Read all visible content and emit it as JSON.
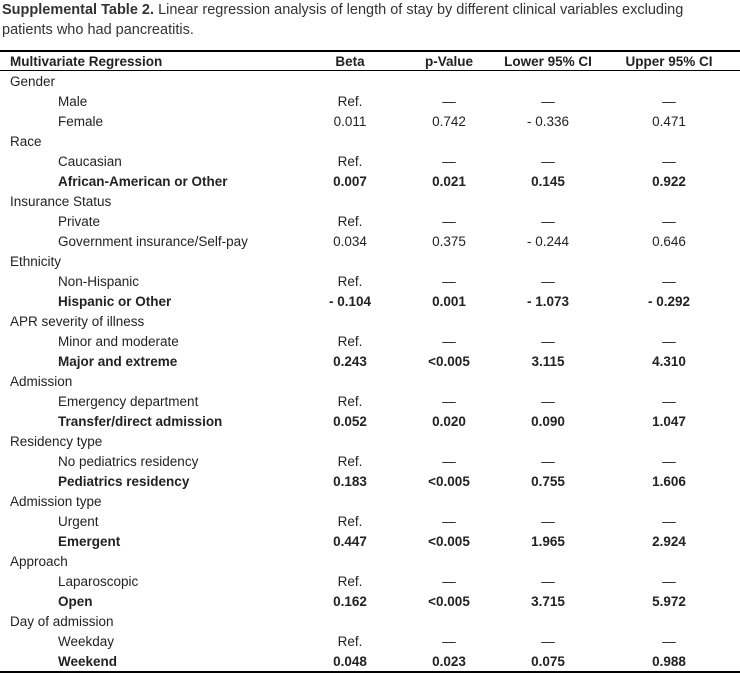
{
  "caption": {
    "label": "Supplemental Table 2.",
    "text": "Linear regression analysis of length of stay by different clinical variables excluding patients who had pancreatitis."
  },
  "table": {
    "columns": [
      "Multivariate Regression",
      "Beta",
      "p-Value",
      "Lower 95% CI",
      "Upper 95% CI"
    ],
    "groups": [
      {
        "label": "Gender",
        "rows": [
          {
            "label": "Male",
            "bold": false,
            "cells": [
              "Ref.",
              "—",
              "—",
              "—"
            ]
          },
          {
            "label": "Female",
            "bold": false,
            "cells": [
              "0.011",
              "0.742",
              "- 0.336",
              "0.471"
            ]
          }
        ]
      },
      {
        "label": "Race",
        "rows": [
          {
            "label": "Caucasian",
            "bold": false,
            "cells": [
              "Ref.",
              "—",
              "—",
              "—"
            ]
          },
          {
            "label": "African-American or Other",
            "bold": true,
            "cells": [
              "0.007",
              "0.021",
              "0.145",
              "0.922"
            ]
          }
        ]
      },
      {
        "label": "Insurance Status",
        "rows": [
          {
            "label": "Private",
            "bold": false,
            "cells": [
              "Ref.",
              "—",
              "—",
              "—"
            ]
          },
          {
            "label": "Government insurance/Self-pay",
            "bold": false,
            "cells": [
              "0.034",
              "0.375",
              "- 0.244",
              "0.646"
            ]
          }
        ]
      },
      {
        "label": "Ethnicity",
        "rows": [
          {
            "label": "Non-Hispanic",
            "bold": false,
            "cells": [
              "Ref.",
              "—",
              "—",
              "—"
            ]
          },
          {
            "label": "Hispanic or Other",
            "bold": true,
            "cells": [
              "- 0.104",
              "0.001",
              "- 1.073",
              "- 0.292"
            ]
          }
        ]
      },
      {
        "label": "APR severity of illness",
        "rows": [
          {
            "label": "Minor and moderate",
            "bold": false,
            "cells": [
              "Ref.",
              "—",
              "—",
              "—"
            ]
          },
          {
            "label": "Major and extreme",
            "bold": true,
            "cells": [
              "0.243",
              "<0.005",
              "3.115",
              "4.310"
            ]
          }
        ]
      },
      {
        "label": "Admission",
        "rows": [
          {
            "label": "Emergency department",
            "bold": false,
            "cells": [
              "Ref.",
              "—",
              "—",
              "—"
            ]
          },
          {
            "label": "Transfer/direct admission",
            "bold": true,
            "cells": [
              "0.052",
              "0.020",
              "0.090",
              "1.047"
            ]
          }
        ]
      },
      {
        "label": "Residency type",
        "rows": [
          {
            "label": "No pediatrics residency",
            "bold": false,
            "cells": [
              "Ref.",
              "—",
              "—",
              "—"
            ]
          },
          {
            "label": "Pediatrics residency",
            "bold": true,
            "cells": [
              "0.183",
              "<0.005",
              "0.755",
              "1.606"
            ]
          }
        ]
      },
      {
        "label": "Admission type",
        "rows": [
          {
            "label": "Urgent",
            "bold": false,
            "cells": [
              "Ref.",
              "—",
              "—",
              "—"
            ]
          },
          {
            "label": "Emergent",
            "bold": true,
            "cells": [
              "0.447",
              "<0.005",
              "1.965",
              "2.924"
            ]
          }
        ]
      },
      {
        "label": "Approach",
        "rows": [
          {
            "label": "Laparoscopic",
            "bold": false,
            "cells": [
              "Ref.",
              "—",
              "—",
              "—"
            ]
          },
          {
            "label": "Open",
            "bold": true,
            "cells": [
              "0.162",
              "<0.005",
              "3.715",
              "5.972"
            ]
          }
        ]
      },
      {
        "label": "Day of admission",
        "rows": [
          {
            "label": "Weekday",
            "bold": false,
            "cells": [
              "Ref.",
              "—",
              "—",
              "—"
            ]
          },
          {
            "label": "Weekend",
            "bold": true,
            "cells": [
              "0.048",
              "0.023",
              "0.075",
              "0.988"
            ]
          }
        ]
      }
    ]
  }
}
